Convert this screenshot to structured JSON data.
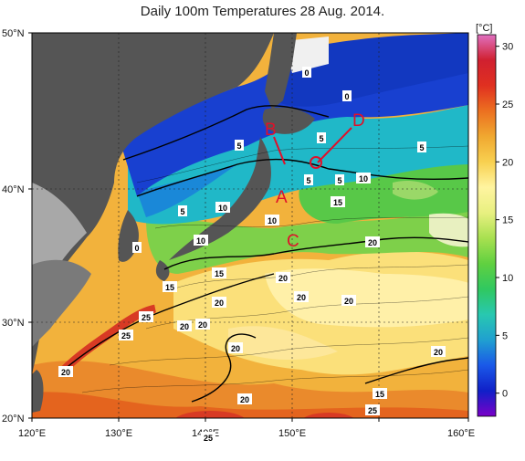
{
  "title": "Daily 100m Temperatures 28 Aug. 2014.",
  "lat_labels": [
    "50°N",
    "40°N",
    "30°N",
    "20°N"
  ],
  "lon_labels": [
    "120°E",
    "130°E",
    "140°E",
    "150°E",
    "160°E"
  ],
  "colorbar": {
    "unit": "[°C]",
    "ticks": [
      "30",
      "25",
      "20",
      "15",
      "10",
      "5",
      "0"
    ],
    "range": [
      -2,
      31
    ],
    "stops": [
      "#7a00c8",
      "#1020c8",
      "#1a58e8",
      "#20a0d0",
      "#28c8b0",
      "#30c860",
      "#60d040",
      "#a8e050",
      "#e8f080",
      "#fff4a0",
      "#f8d050",
      "#f0a830",
      "#ec7020",
      "#e03020",
      "#d02030",
      "#e070c0"
    ]
  },
  "land_color": "#555555",
  "markers": [
    "A",
    "B",
    "C",
    "D"
  ],
  "contour_labels": [
    "0",
    "0",
    "5",
    "5",
    "5",
    "5",
    "10",
    "10",
    "10",
    "15",
    "15",
    "15",
    "20",
    "20",
    "20",
    "20",
    "20",
    "20",
    "20",
    "20",
    "20",
    "25",
    "25",
    "25",
    "20",
    "0",
    "5",
    "5",
    "10",
    "15",
    "20",
    "25"
  ]
}
